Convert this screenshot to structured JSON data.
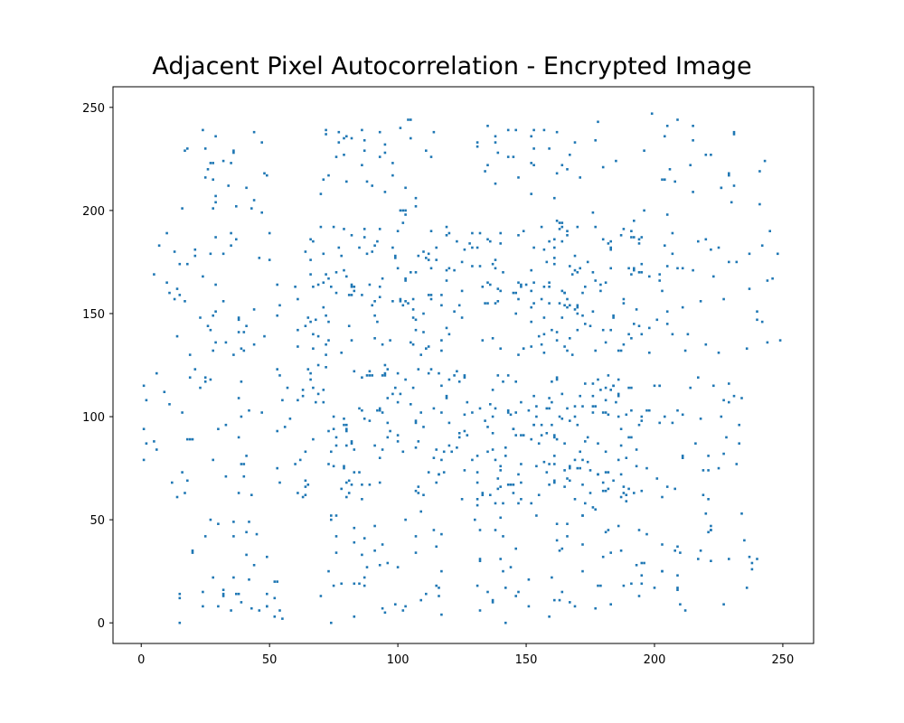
{
  "chart_data": {
    "type": "scatter",
    "title": "Adjacent Pixel Autocorrelation - Encrypted Image",
    "xlabel": "",
    "ylabel": "",
    "xlim": [
      -11,
      262
    ],
    "ylim": [
      -10,
      260
    ],
    "x_ticks": [
      0,
      50,
      100,
      150,
      200,
      250
    ],
    "y_ticks": [
      0,
      50,
      100,
      150,
      200,
      250
    ],
    "grid": false,
    "marker_color": "#1f77b4",
    "clusters": [
      {
        "x_range": [
          14,
          50
        ],
        "y_range": [
          195,
          240
        ],
        "count": 28
      },
      {
        "x_range": [
          70,
          98
        ],
        "y_range": [
          205,
          240
        ],
        "count": 26
      },
      {
        "x_range": [
          96,
          118
        ],
        "y_range": [
          190,
          245
        ],
        "count": 14
      },
      {
        "x_range": [
          130,
          155
        ],
        "y_range": [
          200,
          245
        ],
        "count": 20
      },
      {
        "x_range": [
          155,
          185
        ],
        "y_range": [
          185,
          245
        ],
        "count": 22
      },
      {
        "x_range": [
          195,
          245
        ],
        "y_range": [
          195,
          248
        ],
        "count": 28
      },
      {
        "x_range": [
          5,
          60
        ],
        "y_range": [
          130,
          190
        ],
        "count": 50
      },
      {
        "x_range": [
          60,
          120
        ],
        "y_range": [
          130,
          195
        ],
        "count": 120
      },
      {
        "x_range": [
          120,
          160
        ],
        "y_range": [
          130,
          190
        ],
        "count": 70
      },
      {
        "x_range": [
          160,
          195
        ],
        "y_range": [
          130,
          195
        ],
        "count": 85
      },
      {
        "x_range": [
          195,
          250
        ],
        "y_range": [
          130,
          190
        ],
        "count": 45
      },
      {
        "x_range": [
          0,
          60
        ],
        "y_range": [
          60,
          125
        ],
        "count": 50
      },
      {
        "x_range": [
          60,
          125
        ],
        "y_range": [
          60,
          125
        ],
        "count": 130
      },
      {
        "x_range": [
          125,
          160
        ],
        "y_range": [
          60,
          120
        ],
        "count": 75
      },
      {
        "x_range": [
          160,
          195
        ],
        "y_range": [
          60,
          120
        ],
        "count": 95
      },
      {
        "x_range": [
          195,
          235
        ],
        "y_range": [
          60,
          120
        ],
        "count": 40
      },
      {
        "x_range": [
          13,
          55
        ],
        "y_range": [
          0,
          50
        ],
        "count": 40
      },
      {
        "x_range": [
          70,
          118
        ],
        "y_range": [
          0,
          55
        ],
        "count": 45
      },
      {
        "x_range": [
          130,
          160
        ],
        "y_range": [
          0,
          60
        ],
        "count": 30
      },
      {
        "x_range": [
          160,
          195
        ],
        "y_range": [
          5,
          60
        ],
        "count": 35
      },
      {
        "x_range": [
          195,
          240
        ],
        "y_range": [
          5,
          60
        ],
        "count": 35
      }
    ]
  }
}
